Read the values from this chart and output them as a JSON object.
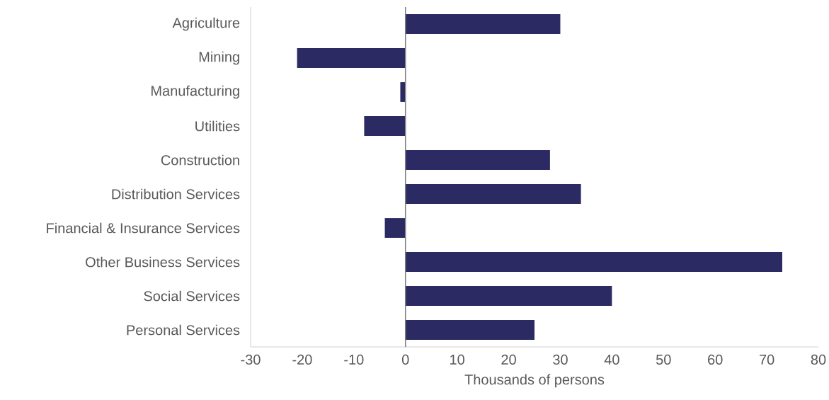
{
  "chart_data": {
    "type": "bar",
    "orientation": "horizontal",
    "xlabel": "Thousands of persons",
    "categories": [
      "Agriculture",
      "Mining",
      "Manufacturing",
      "Utilities",
      "Construction",
      "Distribution Services",
      "Financial & Insurance Services",
      "Other Business Services",
      "Social Services",
      "Personal Services"
    ],
    "values": [
      30,
      -21,
      -1,
      -8,
      28,
      34,
      -4,
      73,
      40,
      25
    ],
    "color": "#2b2a63",
    "xlim": [
      -30,
      80
    ],
    "xticks": [
      -30,
      -20,
      -10,
      0,
      10,
      20,
      30,
      40,
      50,
      60,
      70,
      80
    ],
    "ref_lines": [
      {
        "axis": "x",
        "value": 0,
        "color": "#7f7f7f"
      }
    ]
  }
}
